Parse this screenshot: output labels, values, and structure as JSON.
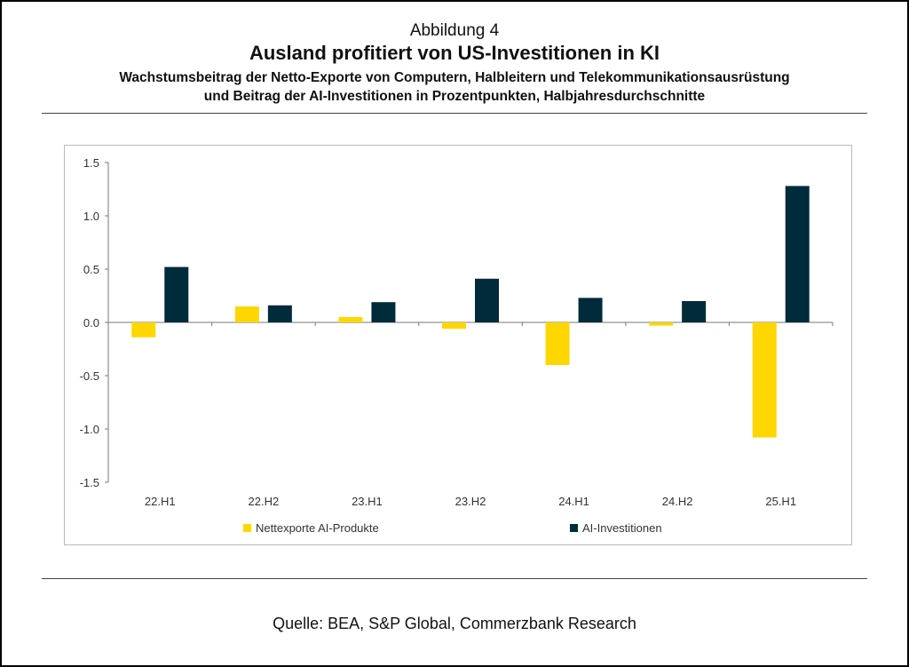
{
  "header": {
    "figure_label": "Abbildung 4",
    "title": "Ausland profitiert von US-Investitionen in KI",
    "subtitle_line1": "Wachstumsbeitrag der Netto-Exporte von Computern, Halbleitern und Telekommunikationsausrüstung",
    "subtitle_line2": "und Beitrag der AI-Investitionen in Prozentpunkten, Halbjahresdurchschnitte"
  },
  "source": "Quelle: BEA, S&P Global, Commerzbank Research",
  "chart_data": {
    "type": "bar",
    "categories": [
      "22.H1",
      "22.H2",
      "23.H1",
      "23.H2",
      "24.H1",
      "24.H2",
      "25.H1"
    ],
    "series": [
      {
        "name": "Nettexporte AI-Produkte",
        "color": "#FFD700",
        "values": [
          -0.14,
          0.15,
          0.05,
          -0.06,
          -0.4,
          -0.03,
          -1.08
        ]
      },
      {
        "name": "AI-Investitionen",
        "color": "#002B3A",
        "values": [
          0.52,
          0.16,
          0.19,
          0.41,
          0.23,
          0.2,
          1.28
        ]
      }
    ],
    "ylim": [
      -1.5,
      1.5
    ],
    "yticks": [
      "1.5",
      "1.0",
      "0.5",
      "0.0",
      "-0.5",
      "-1.0",
      "-1.5"
    ],
    "grid": false,
    "legend_position": "bottom"
  }
}
